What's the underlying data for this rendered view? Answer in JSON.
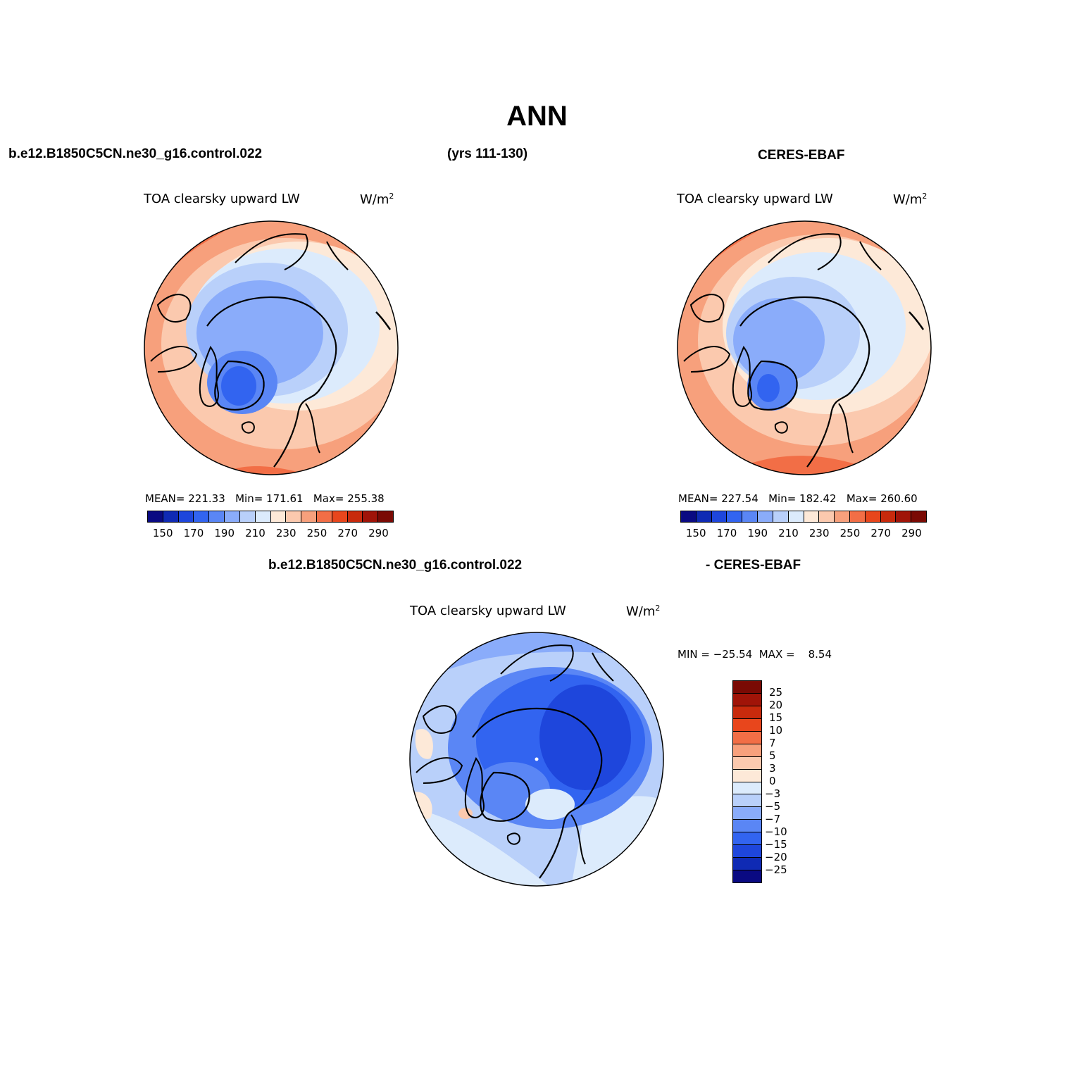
{
  "title": "ANN",
  "header": {
    "case_name": "b.e12.B1850C5CN.ne30_g16.control.022",
    "years": "(yrs 111-130)",
    "obs_name": "CERES-EBAF",
    "diff_case": "b.e12.B1850C5CN.ne30_g16.control.022",
    "diff_obs": "- CERES-EBAF"
  },
  "panels": [
    {
      "variable": "TOA clearsky upward LW",
      "units": "W/m",
      "units_sup": "2",
      "stats": {
        "mean_label": "MEAN=",
        "mean": "221.33",
        "min_label": "Min=",
        "min": "171.61",
        "max_label": "Max=",
        "max": "255.38"
      }
    },
    {
      "variable": "TOA clearsky upward LW",
      "units": "W/m",
      "units_sup": "2",
      "stats": {
        "mean_label": "MEAN=",
        "mean": "227.54",
        "min_label": "Min=",
        "min": "182.42",
        "max_label": "Max=",
        "max": "260.60"
      }
    },
    {
      "variable": "TOA clearsky upward LW",
      "units": "W/m",
      "units_sup": "2",
      "minmax_text": "MIN = −25.54  MAX =    8.54"
    }
  ],
  "abs_colorbar": {
    "colors": [
      "#0a0a82",
      "#0f2ab4",
      "#1e46dc",
      "#3264f0",
      "#5a86f5",
      "#8aacfa",
      "#b9d0fa",
      "#dcebfc",
      "#fde9d8",
      "#fbc9ae",
      "#f7a07c",
      "#f26e46",
      "#e8461c",
      "#c82a0c",
      "#a01408",
      "#7a0a04"
    ],
    "labels": [
      "150",
      "170",
      "190",
      "210",
      "230",
      "250",
      "270",
      "290"
    ]
  },
  "diff_colorbar": {
    "colors": [
      "#7a0a04",
      "#a01408",
      "#c82a0c",
      "#e8461c",
      "#f26e46",
      "#f7a07c",
      "#fbc9ae",
      "#fde9d8",
      "#dcebfc",
      "#b9d0fa",
      "#8aacfa",
      "#5a86f5",
      "#3264f0",
      "#1e46dc",
      "#0f2ab4",
      "#0a0a82"
    ],
    "labels": [
      "25",
      "20",
      "15",
      "10",
      "7",
      "5",
      "3",
      "0",
      "−3",
      "−5",
      "−7",
      "−10",
      "−15",
      "−20",
      "−25"
    ]
  }
}
